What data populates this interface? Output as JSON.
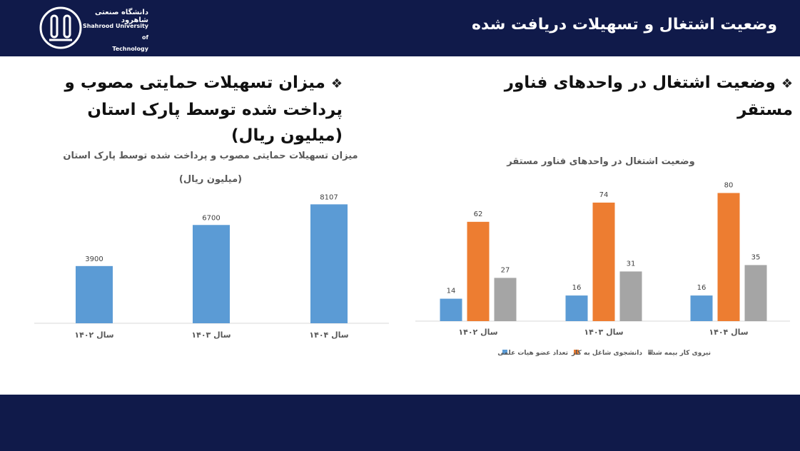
{
  "header": {
    "title": "وضعیت اشتغال و تسهیلات دریافت شده",
    "logo_fa": "دانشگاه صنعتی شاهرود",
    "logo_en_1": "Shahrood University of",
    "logo_en_2": "Technology"
  },
  "sections": {
    "right_heading": "وضعیت اشتغال در واحدهای فناور مستقر",
    "left_heading": "میزان تسهیلات حمایتی مصوب و پرداخت شده توسط پارک استان (میلیون ریال)"
  },
  "chart_data": [
    {
      "type": "bar",
      "title": "میزان تسهیلات حمایتی مصوب و پرداخت شده توسط پارک استان",
      "subtitle": "(میلیون ریال)",
      "categories": [
        "سال ۱۴۰۲",
        "سال ۱۴۰۳",
        "سال ۱۴۰۴"
      ],
      "values": [
        3900,
        6700,
        8107
      ],
      "color": "#5b9bd5",
      "ylim": [
        0,
        9000
      ],
      "grid": false
    },
    {
      "type": "bar",
      "title": "وضعیت اشتغال در واحدهای فناور مستقر",
      "categories": [
        "سال ۱۴۰۲",
        "سال ۱۴۰۳",
        "سال ۱۴۰۴"
      ],
      "series": [
        {
          "name": "تعداد عضو هیات علمی",
          "values": [
            14,
            16,
            16
          ],
          "color": "#5b9bd5"
        },
        {
          "name": "دانشجوی شاغل به کار",
          "values": [
            62,
            74,
            80
          ],
          "color": "#ed7d31"
        },
        {
          "name": "نیروی کار بیمه شده",
          "values": [
            27,
            31,
            35
          ],
          "color": "#a5a5a5"
        }
      ],
      "ylim": [
        0,
        90
      ],
      "legend": "bottom",
      "grid": false
    }
  ]
}
